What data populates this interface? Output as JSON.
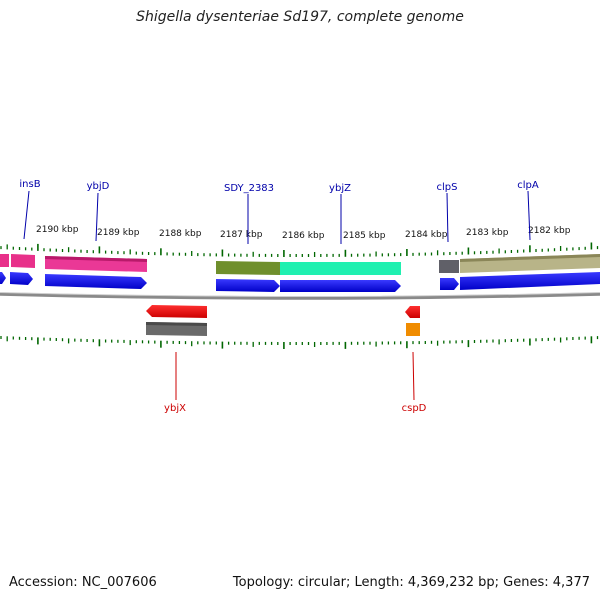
{
  "title": "Shigella dysenteriae Sd197, complete genome",
  "footer": {
    "accession": "Accession: NC_007606",
    "topology": "Topology: circular; Length: 4,369,232 bp; Genes: 4,377"
  },
  "colors": {
    "forward_cds": "#0000ee",
    "reverse_cds": "#ee0000",
    "forward_label": "#0000aa",
    "reverse_label": "#cc0000",
    "tick": "#006600",
    "backbone": "#888888"
  },
  "ruler_labels": [
    "2190 kbp",
    "2189 kbp",
    "2188 kbp",
    "2187 kbp",
    "2186 kbp",
    "2185 kbp",
    "2184 kbp",
    "2183 kbp",
    "2182 kbp"
  ],
  "forward_genes": [
    {
      "name": "insB"
    },
    {
      "name": "ybjD"
    },
    {
      "name": "SDY_2383"
    },
    {
      "name": "ybjZ"
    },
    {
      "name": "clpS"
    },
    {
      "name": "clpA"
    }
  ],
  "reverse_genes": [
    {
      "name": "ybjX"
    },
    {
      "name": "cspD"
    }
  ]
}
